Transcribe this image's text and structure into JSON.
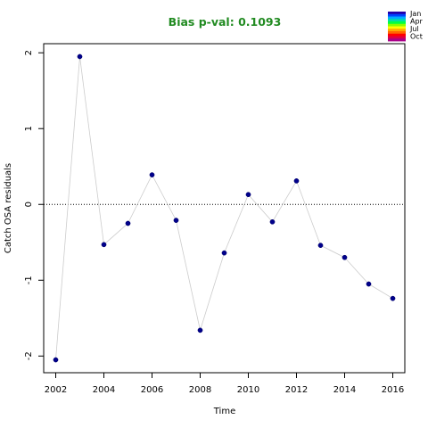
{
  "chart_data": {
    "type": "scatter",
    "title": "Bias p-val: 0.1093",
    "title_color": "#228B22",
    "xlabel": "Time",
    "ylabel": "Catch OSA residuals",
    "xlim": [
      2001.5,
      2016.5
    ],
    "ylim": [
      -2.22,
      2.12
    ],
    "x_ticks": [
      2002,
      2004,
      2006,
      2008,
      2010,
      2012,
      2014,
      2016
    ],
    "y_ticks": [
      -2,
      -1,
      0,
      1,
      2
    ],
    "reference_line": 0,
    "x": [
      2002,
      2003,
      2004,
      2005,
      2006,
      2007,
      2008,
      2009,
      2010,
      2011,
      2012,
      2013,
      2014,
      2015,
      2016
    ],
    "values": [
      -2.05,
      1.95,
      -0.53,
      -0.25,
      0.39,
      -0.21,
      -1.66,
      -0.64,
      0.13,
      -0.23,
      0.31,
      -0.54,
      -0.7,
      -1.05,
      -1.24
    ],
    "point_color": "#00008B",
    "line_color": "#cccccc",
    "grid": false,
    "legend": {
      "placement": "top-right",
      "labels": [
        "Jan",
        "Apr",
        "Jul",
        "Oct"
      ],
      "colors": [
        "#2200AA",
        "#0044FF",
        "#00AAFF",
        "#00DDAA",
        "#00FF44",
        "#88FF00",
        "#FFFF00",
        "#FFAA00",
        "#FF6600",
        "#FF0000",
        "#DD0044",
        "#AA0088"
      ]
    }
  }
}
